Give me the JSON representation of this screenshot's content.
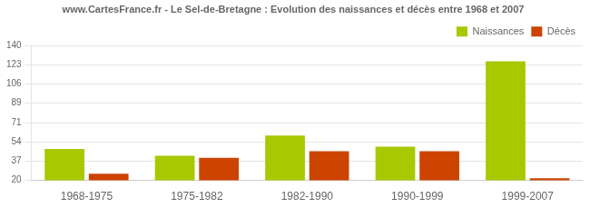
{
  "chart_data": {
    "type": "bar",
    "title": "www.CartesFrance.fr - Le Sel-de-Bretagne : Evolution des naissances et décès entre 1968 et 2007",
    "categories": [
      "1968-1975",
      "1975-1982",
      "1982-1990",
      "1990-1999",
      "1999-2007"
    ],
    "series": [
      {
        "name": "Naissances",
        "color": "#a8c800",
        "values": [
          48,
          42,
          60,
          50,
          126
        ]
      },
      {
        "name": "Décès",
        "color": "#cc4400",
        "values": [
          26,
          40,
          46,
          46,
          22
        ]
      }
    ],
    "ylim": [
      20,
      140
    ],
    "yticks": [
      20,
      37,
      54,
      71,
      89,
      106,
      123,
      140
    ],
    "grid": true,
    "legend": "upper right"
  }
}
